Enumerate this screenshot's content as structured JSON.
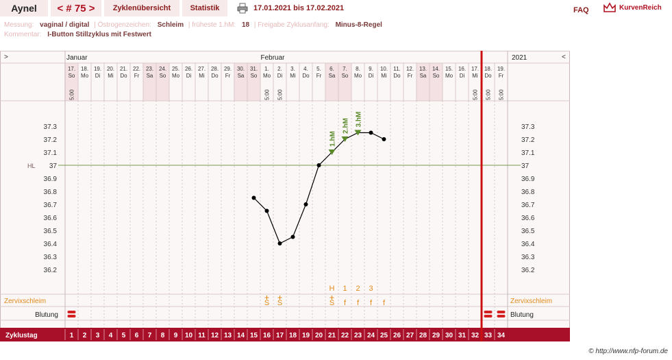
{
  "header": {
    "name": "Aynel",
    "cycle_nav": "< # 75 >",
    "tab_overview": "Zyklenübersicht",
    "tab_statistics": "Statistik",
    "date_range": "17.01.2021 bis 17.02.2021",
    "faq": "FAQ",
    "logo": "KurvenReich"
  },
  "info": {
    "messung_label": "Messung:",
    "messung_value": "vaginal / digital",
    "oestrogen_label": "Östrogenzeichen:",
    "oestrogen_value": "Schleim",
    "frueheste_label": "früheste 1.hM:",
    "frueheste_value": "18",
    "freigabe_label": "Freigabe Zyklusanfang:",
    "freigabe_value": "Minus-8-Regel",
    "kommentar_label": "Kommentar:",
    "kommentar_value": "I-Button Stillzyklus mit Festwert"
  },
  "chart_data": {
    "type": "line",
    "nav_left": ">",
    "nav_right": "<",
    "month_labels": [
      "Januar",
      "Februar",
      "2021"
    ],
    "dates": [
      "17.",
      "18.",
      "19.",
      "20.",
      "21.",
      "22.",
      "23.",
      "24.",
      "25.",
      "26.",
      "27.",
      "28.",
      "29.",
      "30.",
      "31.",
      "1.",
      "2.",
      "3.",
      "4.",
      "5.",
      "6.",
      "7.",
      "8.",
      "9.",
      "10.",
      "11.",
      "12.",
      "13.",
      "14.",
      "15.",
      "16.",
      "17.",
      "18.",
      "19."
    ],
    "weekdays": [
      "So",
      "Mo",
      "Di",
      "Mi",
      "Do",
      "Fr",
      "Sa",
      "So",
      "Mo",
      "Di",
      "Mi",
      "Do",
      "Fr",
      "Sa",
      "So",
      "Mo",
      "Di",
      "Mi",
      "Do",
      "Fr",
      "Sa",
      "So",
      "Mo",
      "Di",
      "Mi",
      "Do",
      "Fr",
      "Sa",
      "So",
      "Mo",
      "Di",
      "Mi",
      "Do",
      "Fr"
    ],
    "times": [
      "5:00",
      "",
      "",
      "",
      "",
      "",
      "",
      "",
      "",
      "",
      "",
      "",
      "",
      "",
      "",
      "5:00",
      "5:00",
      "",
      "",
      "",
      "",
      "",
      "",
      "",
      "",
      "",
      "",
      "",
      "",
      "",
      "",
      "5:00",
      "5:00",
      "5:00"
    ],
    "cycle_days": [
      "1",
      "2",
      "3",
      "4",
      "5",
      "6",
      "7",
      "8",
      "9",
      "10",
      "11",
      "12",
      "13",
      "14",
      "15",
      "16",
      "17",
      "18",
      "19",
      "20",
      "21",
      "22",
      "23",
      "24",
      "25",
      "26",
      "27",
      "28",
      "29",
      "30",
      "31",
      "32",
      "33",
      "34"
    ],
    "y_ticks": [
      "37.3",
      "37.2",
      "37.1",
      "37",
      "36.9",
      "36.8",
      "36.7",
      "36.6",
      "36.5",
      "36.4",
      "36.3",
      "36.2"
    ],
    "hl_label": "HL",
    "hl_value": 37.0,
    "temperatures": [
      {
        "day": 15,
        "value": 36.75
      },
      {
        "day": 16,
        "value": 36.65
      },
      {
        "day": 17,
        "value": 36.4
      },
      {
        "day": 18,
        "value": 36.45
      },
      {
        "day": 19,
        "value": 36.7
      },
      {
        "day": 20,
        "value": 37.0
      },
      {
        "day": 21,
        "value": 37.1
      },
      {
        "day": 22,
        "value": 37.2
      },
      {
        "day": 23,
        "value": 37.25
      },
      {
        "day": 24,
        "value": 37.25
      },
      {
        "day": 25,
        "value": 37.2
      }
    ],
    "high_measurements": [
      {
        "day": 21,
        "label": "1.hM"
      },
      {
        "day": 22,
        "label": "2.hM"
      },
      {
        "day": 23,
        "label": "3.hM"
      }
    ],
    "cervix_counts": [
      {
        "day": 21,
        "label": "H"
      },
      {
        "day": 22,
        "label": "1"
      },
      {
        "day": 23,
        "label": "2"
      },
      {
        "day": 24,
        "label": "3"
      }
    ],
    "cervix_marks": [
      {
        "day": 16,
        "label": "S"
      },
      {
        "day": 17,
        "label": "S"
      },
      {
        "day": 21,
        "label": "S"
      },
      {
        "day": 22,
        "label": "f"
      },
      {
        "day": 23,
        "label": "f"
      },
      {
        "day": 24,
        "label": "f"
      },
      {
        "day": 25,
        "label": "f"
      }
    ],
    "cervix_plus_days": [
      16,
      17,
      21
    ],
    "bleeding_days": [
      1,
      33,
      34
    ],
    "weekend_days": [
      1,
      7,
      8,
      14,
      15,
      21,
      22,
      28,
      29
    ],
    "cycle_end_day": 32,
    "row_labels": {
      "zervix": "Zervixschleim",
      "blutung": "Blutung",
      "zyklustag": "Zyklustag"
    },
    "colors": {
      "curve": "#000000",
      "hm": "#5a8a2a",
      "hl": "#7a9a4a",
      "accent": "#a8102a",
      "cervix": "#e08a1a",
      "weekend": "#f3e1e4"
    }
  },
  "footer": {
    "copyright": "© http://www.nfp-forum.de"
  }
}
